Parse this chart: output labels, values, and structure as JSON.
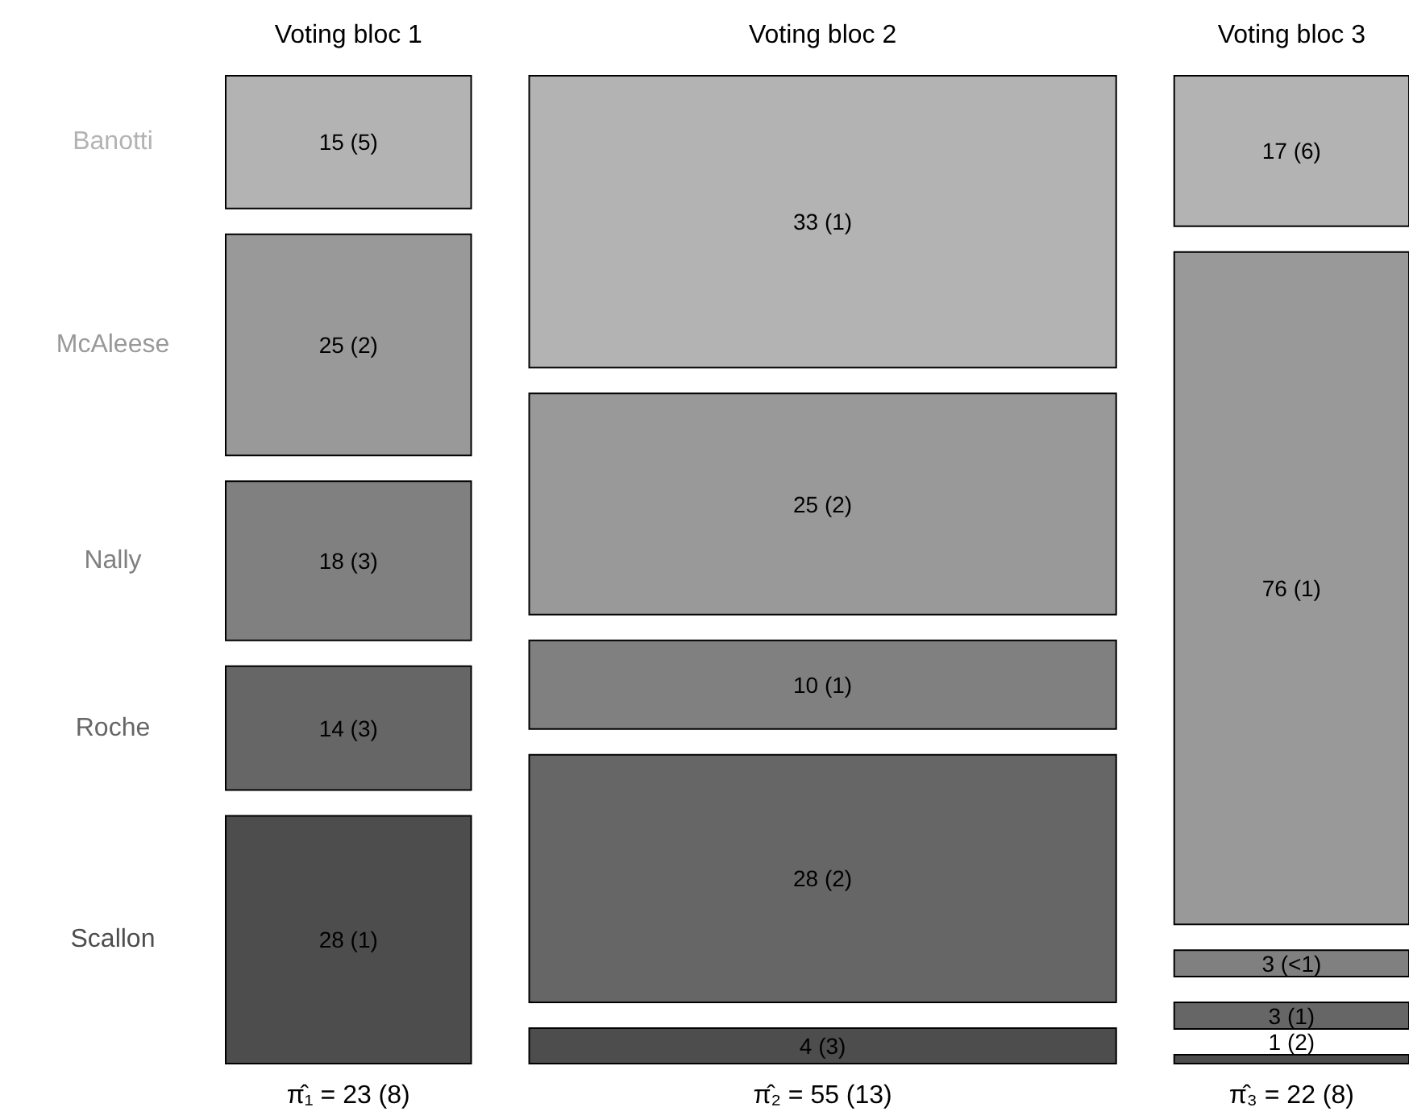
{
  "chart_data": {
    "type": "other",
    "categories": [
      "Voting bloc 1",
      "Voting bloc 2",
      "Voting bloc 3"
    ],
    "series": [
      {
        "name": "Banotti",
        "color": "#b3b3b3",
        "values": [
          15,
          33,
          17
        ],
        "value_labels": [
          "15 (5)",
          "33 (1)",
          "17 (6)"
        ]
      },
      {
        "name": "McAleese",
        "color": "#999999",
        "values": [
          25,
          25,
          76
        ],
        "value_labels": [
          "25 (2)",
          "25 (2)",
          "76 (1)"
        ]
      },
      {
        "name": "Nally",
        "color": "#808080",
        "values": [
          18,
          10,
          3
        ],
        "value_labels": [
          "18 (3)",
          "10 (1)",
          "3 (<1)"
        ]
      },
      {
        "name": "Roche",
        "color": "#666666",
        "values": [
          14,
          28,
          3
        ],
        "value_labels": [
          "14 (3)",
          "28 (2)",
          "3 (1)"
        ]
      },
      {
        "name": "Scallon",
        "color": "#4d4d4d",
        "values": [
          28,
          4,
          1
        ],
        "value_labels": [
          "28 (1)",
          "4 (3)",
          "1 (2)"
        ]
      }
    ],
    "values": [
      23,
      55,
      22
    ],
    "value_labels": [
      "π̂₁ = 23 (8)",
      "π̂₂ = 55 (13)",
      "π̂₃ = 22 (8)"
    ]
  }
}
